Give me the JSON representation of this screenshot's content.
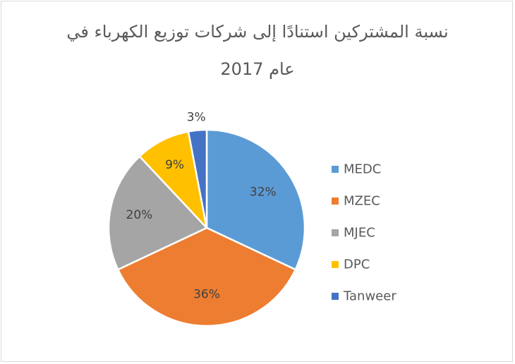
{
  "chart_data": {
    "type": "pie",
    "title_line1": "نسبة المشتركين استنادًا إلى شركات توزيع الكهرباء في",
    "title_line2": "عام 2017",
    "categories": [
      "MEDC",
      "MZEC",
      "MJEC",
      "DPC",
      "Tanweer"
    ],
    "values": [
      32,
      36,
      20,
      9,
      3
    ],
    "labels": [
      "32%",
      "36%",
      "20%",
      "9%",
      "3%"
    ],
    "colors": [
      "#5B9BD5",
      "#ED7D31",
      "#A5A5A5",
      "#FFC000",
      "#4472C4"
    ],
    "legend_position": "right"
  }
}
